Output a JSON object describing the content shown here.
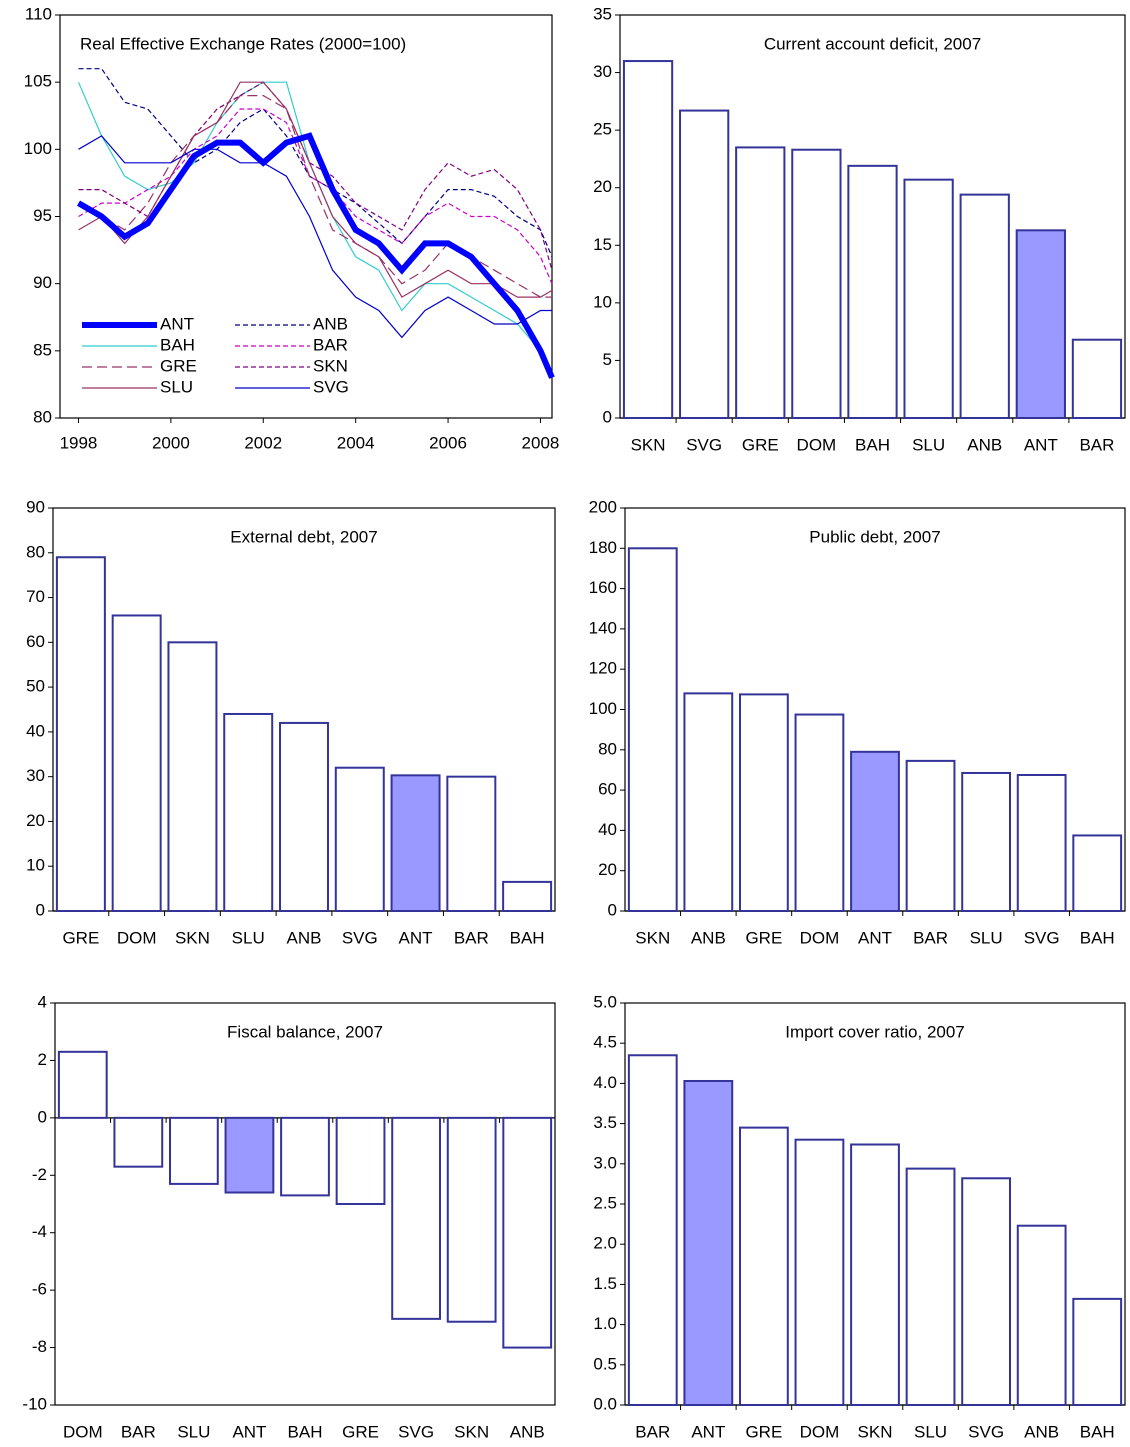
{
  "chart_data": [
    {
      "type": "line",
      "title": "Real Effective Exchange Rates (2000=100)",
      "x": [
        1998,
        1998.5,
        1999,
        1999.5,
        2000,
        2000.5,
        2001,
        2001.5,
        2002,
        2002.5,
        2003,
        2003.5,
        2004,
        2004.5,
        2005,
        2005.5,
        2006,
        2006.5,
        2007,
        2007.5,
        2008,
        2008.25
      ],
      "series": [
        {
          "name": "ANT",
          "color": "#0000ff",
          "line_style": "thick",
          "values": [
            96,
            95,
            93.5,
            94.5,
            97,
            99.5,
            100.5,
            100.5,
            99,
            100.5,
            101,
            97,
            94,
            93,
            91,
            93,
            93,
            92,
            90,
            88,
            85,
            83
          ]
        },
        {
          "name": "ANB",
          "color": "#000080",
          "line_style": "dashed",
          "values": [
            106,
            106,
            103.5,
            103,
            101,
            99,
            100,
            102,
            103,
            101,
            98,
            97,
            96,
            94.5,
            93,
            95,
            97,
            97,
            96.5,
            95,
            94,
            92
          ]
        },
        {
          "name": "BAH",
          "color": "#33cccc",
          "line_style": "solid",
          "values": [
            105,
            101,
            98,
            97,
            97.5,
            99,
            102,
            104,
            105,
            105,
            99,
            95,
            92,
            91,
            88,
            90,
            90,
            89,
            88,
            87,
            85,
            83
          ]
        },
        {
          "name": "BAR",
          "color": "#cc00cc",
          "line_style": "dashed",
          "values": [
            95,
            96,
            96,
            97,
            98,
            100,
            101,
            103,
            103,
            102,
            98,
            97,
            95,
            94,
            93,
            95,
            96,
            95,
            95,
            94,
            92,
            90
          ]
        },
        {
          "name": "GRE",
          "color": "#993366",
          "line_style": "longdash",
          "values": [
            96,
            95,
            94,
            96,
            99,
            101,
            102,
            104,
            104,
            103,
            98,
            94,
            93,
            92,
            90,
            91,
            93,
            92,
            91,
            90,
            89,
            89
          ]
        },
        {
          "name": "SKN",
          "color": "#800080",
          "line_style": "dashed",
          "values": [
            97,
            97,
            96,
            95,
            98,
            101,
            103,
            104,
            105,
            103,
            99,
            98,
            96,
            95,
            94,
            97,
            99,
            98,
            98.5,
            97,
            94,
            91
          ]
        },
        {
          "name": "SLU",
          "color": "#993366",
          "line_style": "solid",
          "values": [
            94,
            95,
            93,
            95,
            98,
            101,
            102,
            105,
            105,
            103,
            99,
            95,
            93,
            92,
            89,
            90,
            91,
            90,
            90,
            89,
            89,
            89.5
          ]
        },
        {
          "name": "SVG",
          "color": "#0000cc",
          "line_style": "solid",
          "values": [
            100,
            101,
            99,
            99,
            99,
            100,
            100,
            99,
            99,
            98,
            95,
            91,
            89,
            88,
            86,
            88,
            89,
            88,
            87,
            87,
            88,
            88
          ]
        }
      ],
      "xlim": [
        1997.6,
        2008.25
      ],
      "ylim": [
        80,
        110
      ],
      "xticks": [
        1998,
        2000,
        2002,
        2004,
        2006,
        2008
      ],
      "yticks": [
        80,
        85,
        90,
        95,
        100,
        105,
        110
      ]
    },
    {
      "type": "bar",
      "title": "Current account deficit, 2007",
      "categories": [
        "SKN",
        "SVG",
        "GRE",
        "DOM",
        "BAH",
        "SLU",
        "ANB",
        "ANT",
        "BAR"
      ],
      "values": [
        31,
        26.7,
        23.5,
        23.3,
        21.9,
        20.7,
        19.4,
        16.3,
        6.8
      ],
      "colors": [
        "#ffffff",
        "#ffffff",
        "#ffffff",
        "#ffffff",
        "#ffffff",
        "#ffffff",
        "#ffffff",
        "#9999ff",
        "#ffffff"
      ],
      "edge_color": "#333399",
      "ylim": [
        0,
        35
      ],
      "yticks": [
        0,
        5,
        10,
        15,
        20,
        25,
        30,
        35
      ]
    },
    {
      "type": "bar",
      "title": "External debt, 2007",
      "categories": [
        "GRE",
        "DOM",
        "SKN",
        "SLU",
        "ANB",
        "SVG",
        "ANT",
        "BAR",
        "BAH"
      ],
      "values": [
        79,
        66,
        60,
        44,
        42,
        32,
        30.3,
        30,
        6.5
      ],
      "colors": [
        "#ffffff",
        "#ffffff",
        "#ffffff",
        "#ffffff",
        "#ffffff",
        "#ffffff",
        "#9999ff",
        "#ffffff",
        "#ffffff"
      ],
      "edge_color": "#333399",
      "ylim": [
        0,
        90
      ],
      "yticks": [
        0,
        10,
        20,
        30,
        40,
        50,
        60,
        70,
        80,
        90
      ]
    },
    {
      "type": "bar",
      "title": "Public debt, 2007",
      "categories": [
        "SKN",
        "ANB",
        "GRE",
        "DOM",
        "ANT",
        "BAR",
        "SLU",
        "SVG",
        "BAH"
      ],
      "values": [
        180,
        108,
        107.5,
        97.5,
        79,
        74.5,
        68.5,
        67.5,
        37.5
      ],
      "colors": [
        "#ffffff",
        "#ffffff",
        "#ffffff",
        "#ffffff",
        "#9999ff",
        "#ffffff",
        "#ffffff",
        "#ffffff",
        "#ffffff"
      ],
      "edge_color": "#333399",
      "ylim": [
        0,
        200
      ],
      "yticks": [
        0,
        20,
        40,
        60,
        80,
        100,
        120,
        140,
        160,
        180,
        200
      ]
    },
    {
      "type": "bar",
      "title": "Fiscal balance, 2007",
      "categories": [
        "DOM",
        "BAR",
        "SLU",
        "ANT",
        "BAH",
        "GRE",
        "SVG",
        "SKN",
        "ANB"
      ],
      "values": [
        2.3,
        -1.7,
        -2.3,
        -2.6,
        -2.7,
        -3,
        -7,
        -7.1,
        -8
      ],
      "colors": [
        "#ffffff",
        "#ffffff",
        "#ffffff",
        "#9999ff",
        "#ffffff",
        "#ffffff",
        "#ffffff",
        "#ffffff",
        "#ffffff"
      ],
      "edge_color": "#333399",
      "ylim": [
        -10,
        4
      ],
      "yticks": [
        -10,
        -8,
        -6,
        -4,
        -2,
        0,
        2,
        4
      ]
    },
    {
      "type": "bar",
      "title": "Import cover ratio, 2007",
      "categories": [
        "BAR",
        "ANT",
        "GRE",
        "DOM",
        "SKN",
        "SLU",
        "SVG",
        "ANB",
        "BAH"
      ],
      "values": [
        4.35,
        4.03,
        3.45,
        3.3,
        3.24,
        2.94,
        2.82,
        2.23,
        1.32
      ],
      "colors": [
        "#ffffff",
        "#9999ff",
        "#ffffff",
        "#ffffff",
        "#ffffff",
        "#ffffff",
        "#ffffff",
        "#ffffff",
        "#ffffff"
      ],
      "edge_color": "#333399",
      "ylim": [
        0,
        5
      ],
      "yticks": [
        {
          "value": 0,
          "label": "0.0"
        },
        {
          "value": 0.5,
          "label": "0.5"
        },
        {
          "value": 1,
          "label": "1.0"
        },
        {
          "value": 1.5,
          "label": "1.5"
        },
        {
          "value": 2,
          "label": "2.0"
        },
        {
          "value": 2.5,
          "label": "2.5"
        },
        {
          "value": 3,
          "label": "3.0"
        },
        {
          "value": 3.5,
          "label": "3.5"
        },
        {
          "value": 4,
          "label": "4.0"
        },
        {
          "value": 4.5,
          "label": "4.5"
        },
        {
          "value": 5,
          "label": "5.0"
        }
      ]
    }
  ]
}
